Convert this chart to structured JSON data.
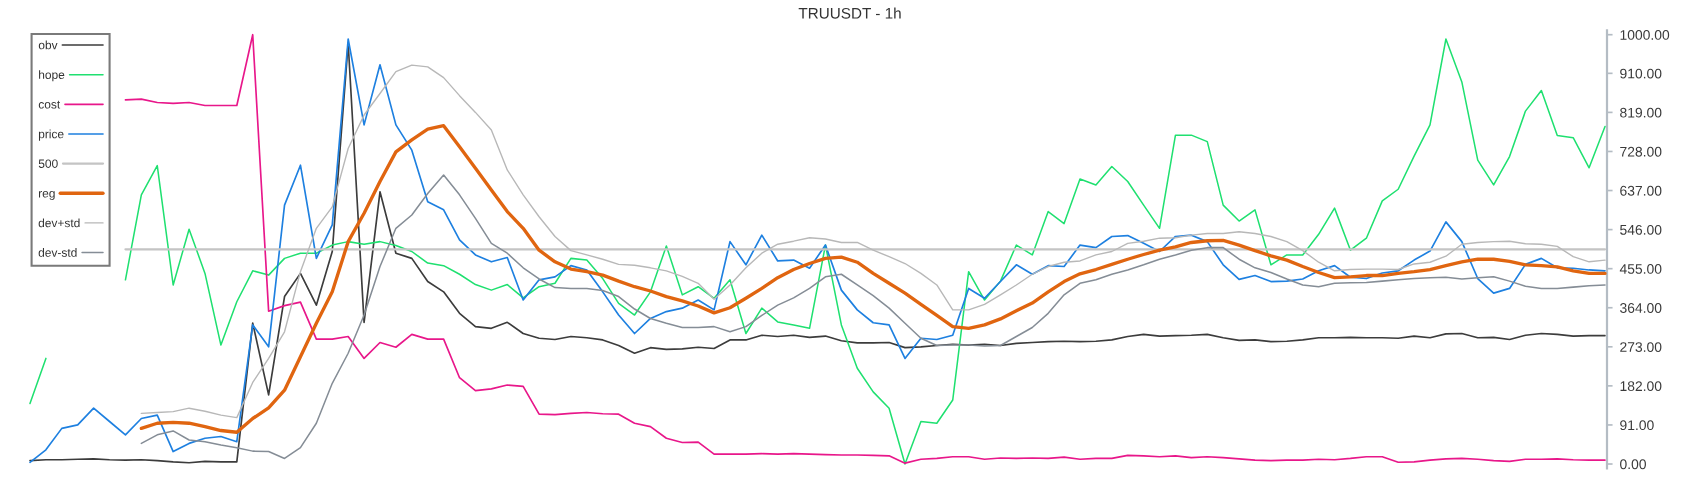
{
  "chart_data": {
    "type": "line",
    "title": "TRUUSDT - 1h",
    "categories": [
      null,
      null,
      null,
      null,
      null,
      null,
      null,
      null,
      null,
      null,
      null,
      null,
      null,
      null,
      null,
      null,
      null,
      null,
      null,
      null,
      null,
      null,
      null,
      null,
      null,
      null,
      null,
      null,
      null,
      null,
      null,
      null,
      null,
      null,
      null,
      null,
      null,
      null,
      null,
      null,
      null,
      null,
      null,
      null,
      null,
      null,
      null,
      null,
      null,
      null,
      null,
      null,
      null,
      null,
      null,
      null,
      null,
      null,
      null,
      null,
      null,
      null,
      null,
      null,
      null,
      null,
      null,
      null,
      null,
      null,
      null,
      null,
      null,
      null,
      null,
      null,
      null,
      null,
      null,
      null,
      null,
      null,
      null,
      null,
      null,
      null,
      null,
      null,
      null,
      null,
      null,
      null,
      null,
      null,
      null,
      null,
      null,
      null,
      null,
      null
    ],
    "series": [
      {
        "name": "obv",
        "color": "#3c3c3c",
        "values": [
          8,
          10,
          10,
          11,
          12,
          10,
          9,
          10,
          8,
          5,
          3,
          6,
          5,
          5,
          328,
          161,
          390,
          444,
          370,
          495,
          980,
          330,
          634,
          491,
          479,
          425,
          401,
          351,
          320,
          316,
          330,
          304,
          293,
          290,
          297,
          294,
          289,
          276,
          258,
          271,
          267,
          268,
          272,
          269,
          289,
          289,
          300,
          297,
          300,
          295,
          298,
          287,
          282,
          282,
          283,
          271,
          273,
          276,
          279,
          277,
          279,
          276,
          281,
          283,
          285,
          286,
          285,
          286,
          289,
          297,
          302,
          298,
          299,
          300,
          302,
          294,
          288,
          289,
          285,
          286,
          289,
          294,
          294,
          295,
          294,
          294,
          293,
          298,
          294,
          303,
          304,
          294,
          295,
          290,
          300,
          304,
          302,
          298,
          299,
          299
        ]
      },
      {
        "name": "hope",
        "color": "#1fe070",
        "values": [
          141,
          246,
          null,
          null,
          null,
          null,
          429,
          627,
          695,
          417,
          547,
          444,
          277,
          378,
          450,
          440,
          479,
          491,
          491,
          510,
          518,
          512,
          518,
          509,
          495,
          468,
          462,
          442,
          418,
          405,
          418,
          387,
          413,
          421,
          479,
          475,
          432,
          374,
          347,
          401,
          508,
          394,
          413,
          386,
          429,
          304,
          363,
          331,
          324,
          316,
          510,
          324,
          223,
          168,
          130,
          0,
          99,
          95,
          149,
          448,
          382,
          426,
          510,
          487,
          588,
          560,
          664,
          650,
          693,
          658,
          603,
          549,
          766,
          766,
          751,
          603,
          566,
          592,
          464,
          487,
          487,
          535,
          596,
          498,
          526,
          613,
          640,
          717,
          790,
          990,
          890,
          708,
          650,
          716,
          822,
          870,
          765,
          760,
          690,
          786
        ]
      },
      {
        "name": "cost",
        "color": "#e8178a",
        "values": [
          null,
          null,
          null,
          null,
          null,
          null,
          848,
          850,
          842,
          840,
          842,
          835,
          835,
          835,
          1000,
          356,
          369,
          377,
          291,
          291,
          297,
          246,
          283,
          272,
          302,
          291,
          291,
          201,
          171,
          175,
          184,
          181,
          116,
          115,
          118,
          120,
          117,
          116,
          95,
          87,
          60,
          50,
          51,
          23,
          23,
          23,
          24,
          23,
          24,
          23,
          22,
          21,
          21,
          20,
          19,
          2,
          11,
          13,
          17,
          17,
          11,
          14,
          13,
          14,
          13,
          16,
          11,
          13,
          13,
          20,
          19,
          17,
          19,
          15,
          17,
          15,
          12,
          9,
          8,
          9,
          9,
          11,
          10,
          13,
          17,
          17,
          4,
          5,
          9,
          12,
          13,
          11,
          8,
          6,
          11,
          11,
          12,
          10,
          9,
          9
        ]
      },
      {
        "name": "price",
        "color": "#1e80e0",
        "values": [
          4,
          33,
          83,
          91,
          130,
          99,
          68,
          106,
          114,
          29,
          48,
          60,
          64,
          52,
          324,
          273,
          603,
          696,
          479,
          557,
          990,
          790,
          930,
          790,
          731,
          611,
          592,
          522,
          487,
          471,
          481,
          382,
          429,
          436,
          462,
          452,
          401,
          347,
          304,
          339,
          355,
          363,
          382,
          359,
          518,
          464,
          533,
          473,
          475,
          456,
          510,
          405,
          359,
          329,
          324,
          246,
          293,
          290,
          300,
          409,
          386,
          425,
          464,
          442,
          462,
          460,
          510,
          504,
          530,
          532,
          514,
          495,
          530,
          533,
          518,
          464,
          430,
          439,
          425,
          426,
          431,
          450,
          462,
          435,
          432,
          445,
          450,
          475,
          496,
          564,
          518,
          432,
          398,
          409,
          465,
          479,
          457,
          456,
          452,
          450
        ]
      },
      {
        "name": "500",
        "color": "#c4c4c4",
        "values": [
          null,
          null,
          null,
          null,
          null,
          null,
          500,
          500,
          500,
          500,
          500,
          500,
          500,
          500,
          500,
          500,
          500,
          500,
          500,
          500,
          500,
          500,
          500,
          500,
          500,
          500,
          500,
          500,
          500,
          500,
          500,
          500,
          500,
          500,
          500,
          500,
          500,
          500,
          500,
          500,
          500,
          500,
          500,
          500,
          500,
          500,
          500,
          500,
          500,
          500,
          500,
          500,
          500,
          500,
          500,
          500,
          500,
          500,
          500,
          500,
          500,
          500,
          500,
          500,
          500,
          500,
          500,
          500,
          500,
          500,
          500,
          500,
          500,
          500,
          500,
          500,
          500,
          500,
          500,
          500,
          500,
          500,
          500,
          500,
          500,
          500,
          500,
          500,
          500,
          500,
          500,
          500,
          500,
          500,
          500,
          500,
          500,
          500,
          500,
          500
        ]
      },
      {
        "name": "reg",
        "color": "#e06510",
        "values": [
          null,
          null,
          null,
          null,
          null,
          null,
          null,
          83,
          95,
          97,
          95,
          87,
          78,
          74,
          106,
          131,
          172,
          250,
          328,
          401,
          518,
          584,
          658,
          727,
          755,
          780,
          788,
          739,
          689,
          638,
          588,
          549,
          498,
          471,
          454,
          448,
          440,
          426,
          413,
          403,
          390,
          380,
          368,
          352,
          364,
          386,
          409,
          434,
          453,
          467,
          479,
          482,
          470,
          444,
          421,
          398,
          372,
          346,
          320,
          316,
          324,
          338,
          357,
          375,
          401,
          425,
          443,
          453,
          465,
          477,
          488,
          498,
          506,
          516,
          520,
          521,
          510,
          497,
          485,
          475,
          460,
          446,
          434,
          436,
          439,
          439,
          444,
          448,
          453,
          462,
          471,
          477,
          477,
          472,
          464,
          462,
          459,
          450,
          444,
          444
        ]
      },
      {
        "name": "dev+std",
        "color": "#b8b8b8",
        "values": [
          null,
          null,
          null,
          null,
          null,
          null,
          null,
          118,
          120,
          122,
          130,
          123,
          114,
          108,
          190,
          246,
          308,
          448,
          549,
          599,
          735,
          813,
          863,
          914,
          929,
          925,
          900,
          858,
          819,
          778,
          685,
          627,
          576,
          530,
          497,
          487,
          477,
          465,
          463,
          457,
          450,
          437,
          421,
          384,
          417,
          457,
          491,
          512,
          519,
          527,
          524,
          516,
          516,
          498,
          483,
          467,
          444,
          417,
          359,
          359,
          372,
          394,
          417,
          442,
          460,
          470,
          473,
          487,
          495,
          514,
          519,
          526,
          527,
          533,
          537,
          537,
          541,
          537,
          530,
          518,
          497,
          470,
          450,
          453,
          454,
          454,
          453,
          466,
          470,
          484,
          512,
          516,
          518,
          519,
          513,
          512,
          507,
          483,
          471,
          475
        ]
      },
      {
        "name": "dev-std",
        "color": "#858d96",
        "values": [
          null,
          null,
          null,
          null,
          null,
          null,
          null,
          48,
          68,
          77,
          56,
          52,
          44,
          38,
          30,
          29,
          13,
          38,
          95,
          188,
          258,
          347,
          460,
          549,
          580,
          630,
          673,
          627,
          572,
          514,
          491,
          457,
          431,
          411,
          409,
          409,
          404,
          390,
          361,
          339,
          328,
          318,
          318,
          320,
          308,
          320,
          346,
          370,
          387,
          409,
          436,
          442,
          417,
          392,
          363,
          328,
          293,
          276,
          277,
          277,
          275,
          276,
          297,
          318,
          351,
          394,
          421,
          429,
          442,
          452,
          464,
          477,
          487,
          498,
          504,
          504,
          477,
          457,
          446,
          431,
          417,
          413,
          421,
          422,
          423,
          426,
          429,
          432,
          434,
          435,
          431,
          434,
          436,
          426,
          414,
          409,
          409,
          412,
          415,
          417
        ]
      }
    ],
    "ylim": [
      -10,
      1010
    ],
    "yticks": [
      {
        "value": 0,
        "label": "0.00"
      },
      {
        "value": 91,
        "label": "91.00"
      },
      {
        "value": 182,
        "label": "182.00"
      },
      {
        "value": 273,
        "label": "273.00"
      },
      {
        "value": 364,
        "label": "364.00"
      },
      {
        "value": 455,
        "label": "455.00"
      },
      {
        "value": 546,
        "label": "546.00"
      },
      {
        "value": 637,
        "label": "637.00"
      },
      {
        "value": 728,
        "label": "728.00"
      },
      {
        "value": 819,
        "label": "819.00"
      },
      {
        "value": 910,
        "label": "910.00"
      },
      {
        "value": 1000,
        "label": "1000.00"
      }
    ],
    "legend": "top left",
    "tick_labels": "y"
  }
}
